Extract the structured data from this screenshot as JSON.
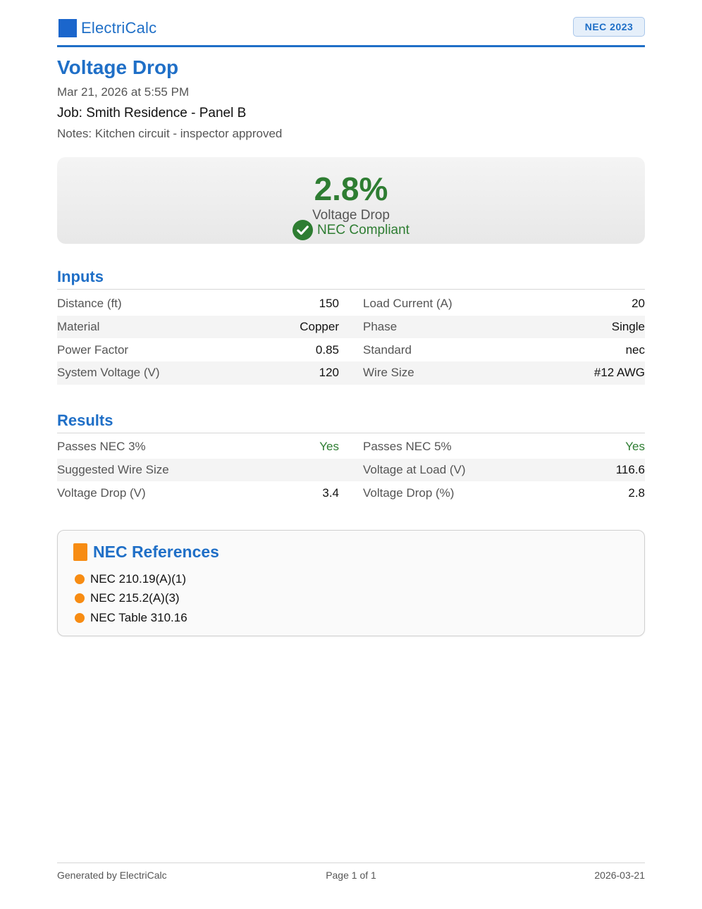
{
  "header": {
    "app_name": "ElectriCalc",
    "logo_icon": "square-logo-icon",
    "logo_color": "#1b66cc",
    "code_badge": "NEC 2023"
  },
  "report": {
    "title": "Voltage Drop",
    "date": "Mar 21, 2026 at 5:55 PM",
    "job": "Job: Smith Residence - Panel B",
    "notes": "Notes: Kitchen circuit - inspector approved"
  },
  "result": {
    "value": "2.8%",
    "label": "Voltage Drop",
    "status_icon": "check-circle-icon",
    "status_text": "NEC Compliant",
    "status_color": "#2e7d32"
  },
  "inputs": {
    "title": "Inputs",
    "rows": [
      [
        {
          "k": "Distance (ft)",
          "v": "150"
        },
        {
          "k": "Load Current (A)",
          "v": "20"
        }
      ],
      [
        {
          "k": "Material",
          "v": "Copper"
        },
        {
          "k": "Phase",
          "v": "Single"
        }
      ],
      [
        {
          "k": "Power Factor",
          "v": "0.85"
        },
        {
          "k": "Standard",
          "v": "nec"
        }
      ],
      [
        {
          "k": "System Voltage (V)",
          "v": "120"
        },
        {
          "k": "Wire Size",
          "v": "#12 AWG"
        }
      ]
    ]
  },
  "results": {
    "title": "Results",
    "rows": [
      [
        {
          "k": "Passes NEC 3%",
          "v": "Yes"
        },
        {
          "k": "Passes NEC 5%",
          "v": "Yes"
        }
      ],
      [
        {
          "k": "Suggested Wire Size",
          "v": ""
        },
        {
          "k": "Voltage at Load (V)",
          "v": "116.6"
        }
      ],
      [
        {
          "k": "Voltage Drop (V)",
          "v": "3.4"
        },
        {
          "k": "Voltage Drop (%)",
          "v": "2.8"
        }
      ]
    ]
  },
  "references": {
    "title": "NEC References",
    "icon": "book-icon",
    "icon_color": "#f78c13",
    "items": [
      "NEC 210.19(A)(1)",
      "NEC 215.2(A)(3)",
      "NEC Table 310.16"
    ]
  },
  "footer": {
    "left": "Generated by ElectriCalc",
    "center": "Page 1 of 1",
    "right": "2026-03-21"
  }
}
